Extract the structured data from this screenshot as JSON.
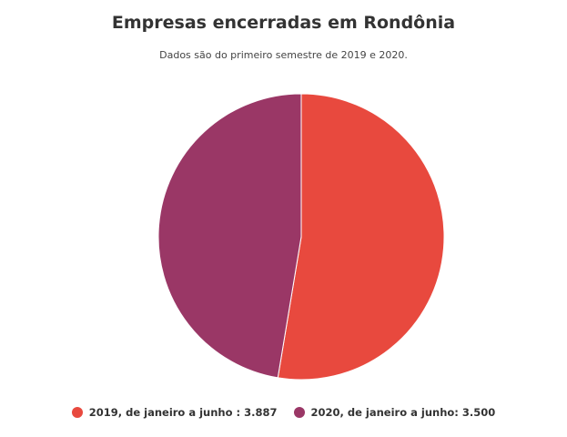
{
  "chart_data": {
    "type": "pie",
    "title": "Empresas encerradas em Rondônia",
    "subtitle": "Dados são do primeiro semestre de 2019 e 2020.",
    "categories": [
      "2019, de janeiro a junho",
      "2020, de janeiro a junho"
    ],
    "values": [
      3887,
      3500
    ],
    "legend_labels": [
      "2019, de janeiro a junho : 3.887",
      "2020, de janeiro a junho: 3.500"
    ],
    "colors": [
      "#e8493e",
      "#9a3766"
    ],
    "legend_position": "bottom"
  }
}
